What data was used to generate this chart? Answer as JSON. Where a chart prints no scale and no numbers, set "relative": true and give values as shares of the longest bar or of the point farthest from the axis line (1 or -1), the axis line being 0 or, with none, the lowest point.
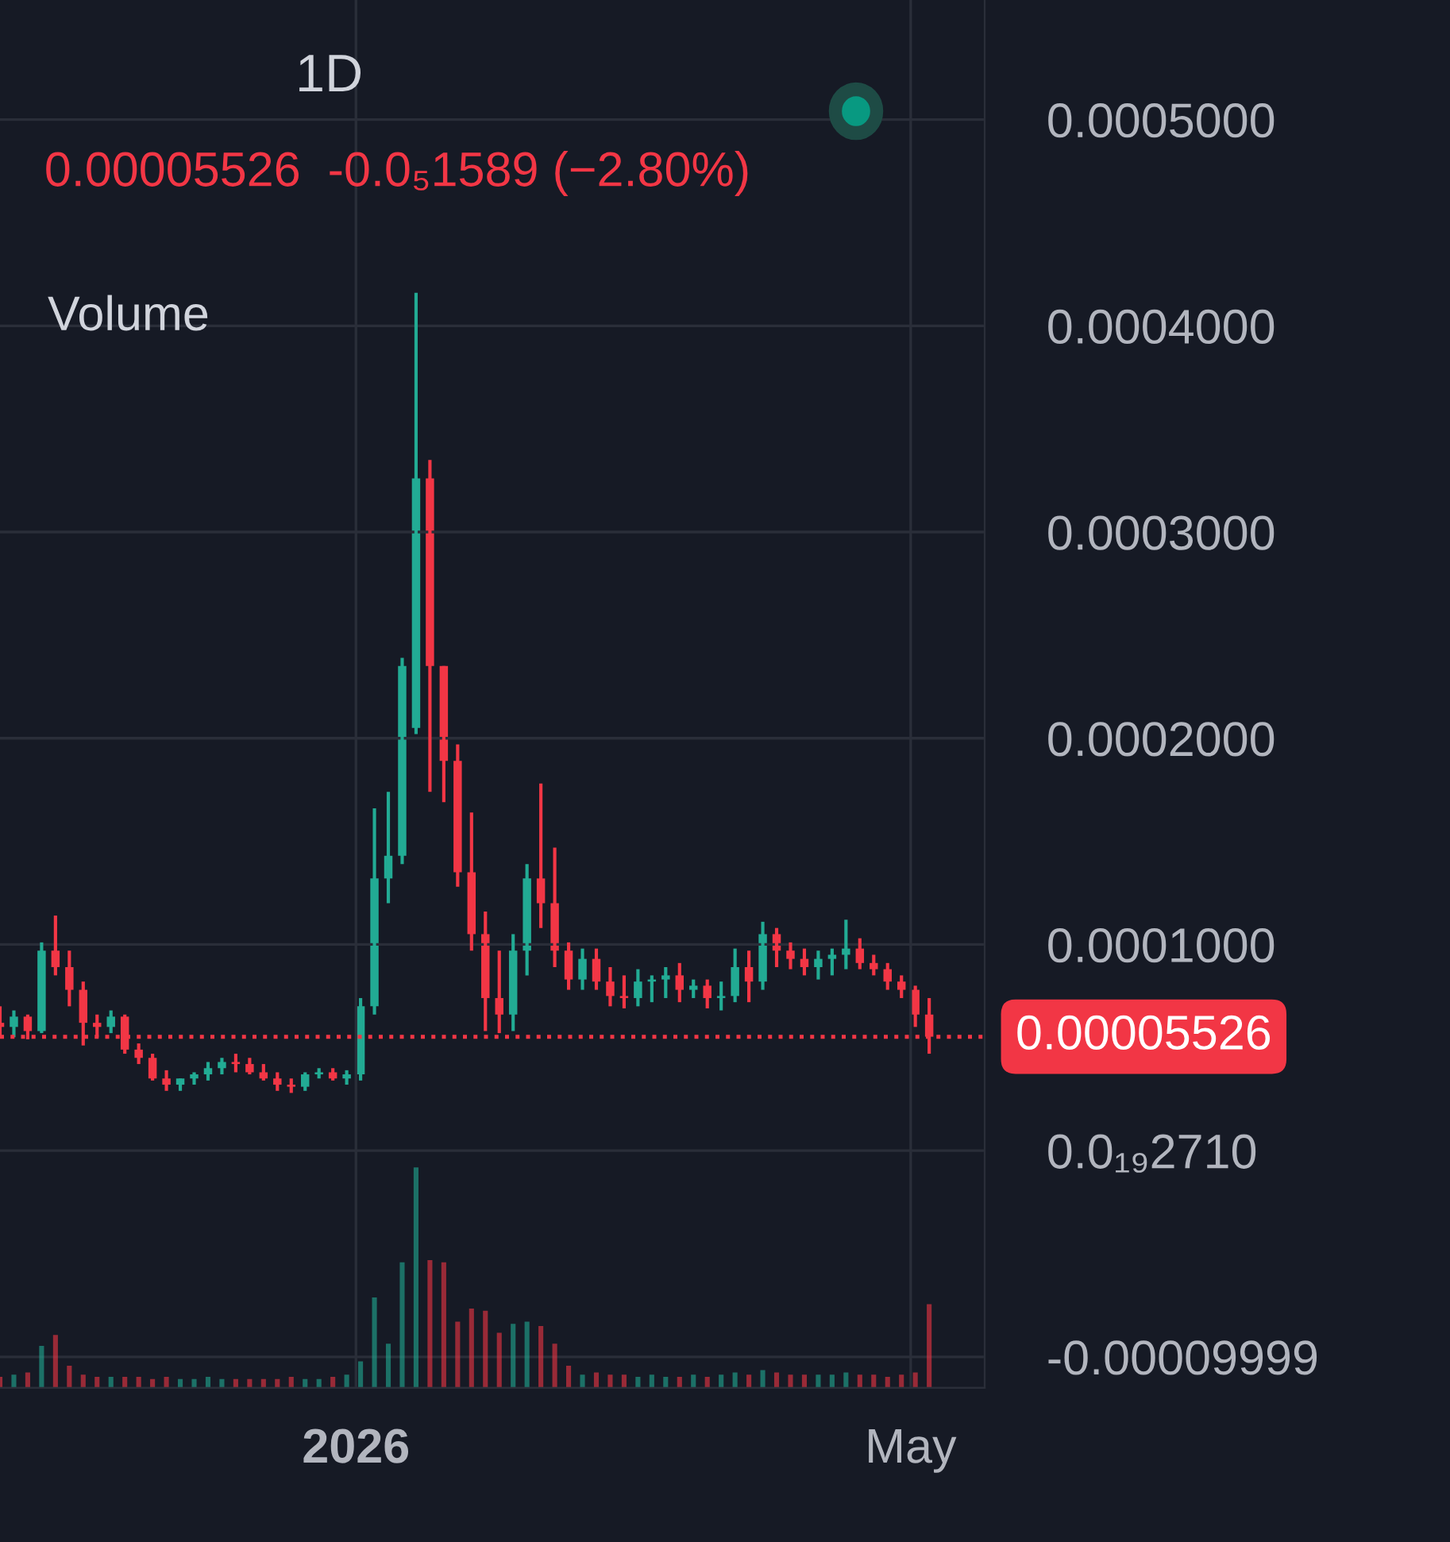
{
  "chart_data": [
    {
      "type": "candlestick",
      "title": "1D",
      "subtitle": "0.00005526  -0.0₅1589 (−2.80%)",
      "x": [
        "2025-10-16",
        "2025-10-19",
        "2025-10-22",
        "2025-10-25",
        "2025-10-28",
        "2025-10-31",
        "2025-11-03",
        "2025-11-06",
        "2025-11-09",
        "2025-11-12",
        "2025-11-15",
        "2025-11-18",
        "2025-11-21",
        "2025-11-24",
        "2025-11-27",
        "2025-11-30",
        "2025-12-03",
        "2025-12-06",
        "2025-12-09",
        "2025-12-12",
        "2025-12-15",
        "2025-12-18",
        "2025-12-21",
        "2025-12-24",
        "2025-12-27",
        "2025-12-30",
        "2026-01-02",
        "2026-01-05",
        "2026-01-08",
        "2026-01-11",
        "2026-01-14",
        "2026-01-17",
        "2026-01-20",
        "2026-01-23",
        "2026-01-26",
        "2026-01-29",
        "2026-02-01",
        "2026-02-04",
        "2026-02-07",
        "2026-02-10",
        "2026-02-13",
        "2026-02-16",
        "2026-02-19",
        "2026-02-22",
        "2026-02-25",
        "2026-02-28",
        "2026-03-03",
        "2026-03-06",
        "2026-03-09",
        "2026-03-12",
        "2026-03-15",
        "2026-03-18",
        "2026-03-21",
        "2026-03-24",
        "2026-03-27",
        "2026-03-30",
        "2026-04-02",
        "2026-04-05",
        "2026-04-08",
        "2026-04-11",
        "2026-04-14",
        "2026-04-17",
        "2026-04-20",
        "2026-04-23",
        "2026-04-26",
        "2026-04-29",
        "2026-05-02",
        "2026-05-05"
      ],
      "ohlc": [
        [
          6.2e-05,
          7e-05,
          5.5e-05,
          6e-05
        ],
        [
          6e-05,
          6.8e-05,
          5.5e-05,
          6.5e-05
        ],
        [
          6.5e-05,
          6.6e-05,
          5.4e-05,
          5.8e-05
        ],
        [
          5.8e-05,
          0.000101,
          5.7e-05,
          9.7e-05
        ],
        [
          9.7e-05,
          0.000114,
          8.5e-05,
          8.9e-05
        ],
        [
          8.9e-05,
          9.7e-05,
          7e-05,
          7.8e-05
        ],
        [
          7.8e-05,
          8.2e-05,
          5.1e-05,
          6.2e-05
        ],
        [
          6.2e-05,
          6.6e-05,
          5.5e-05,
          6e-05
        ],
        [
          6e-05,
          6.8e-05,
          5.7e-05,
          6.5e-05
        ],
        [
          6.5e-05,
          6.6e-05,
          4.7e-05,
          4.9e-05
        ],
        [
          4.9e-05,
          5.2e-05,
          4.2e-05,
          4.5e-05
        ],
        [
          4.5e-05,
          4.7e-05,
          3.4e-05,
          3.5e-05
        ],
        [
          3.5e-05,
          3.9e-05,
          2.9e-05,
          3.2e-05
        ],
        [
          3.2e-05,
          3.5e-05,
          2.9e-05,
          3.5e-05
        ],
        [
          3.5e-05,
          3.8e-05,
          3.2e-05,
          3.7e-05
        ],
        [
          3.7e-05,
          4.3e-05,
          3.4e-05,
          4e-05
        ],
        [
          4e-05,
          4.5e-05,
          3.7e-05,
          4.3e-05
        ],
        [
          4.3e-05,
          4.7e-05,
          3.8e-05,
          4.2e-05
        ],
        [
          4.2e-05,
          4.5e-05,
          3.7e-05,
          3.8e-05
        ],
        [
          3.8e-05,
          4.2e-05,
          3.4e-05,
          3.5e-05
        ],
        [
          3.5e-05,
          3.8e-05,
          2.9e-05,
          3.2e-05
        ],
        [
          3.2e-05,
          3.5e-05,
          2.8e-05,
          3.1e-05
        ],
        [
          3.1e-05,
          3.8e-05,
          2.9e-05,
          3.7e-05
        ],
        [
          3.7e-05,
          4e-05,
          3.5e-05,
          3.8e-05
        ],
        [
          3.8e-05,
          4e-05,
          3.4e-05,
          3.5e-05
        ],
        [
          3.5e-05,
          3.9e-05,
          3.2e-05,
          3.7e-05
        ],
        [
          3.7e-05,
          7.4e-05,
          3.4e-05,
          7e-05
        ],
        [
          7e-05,
          0.000166,
          6.6e-05,
          0.000132
        ],
        [
          0.000132,
          0.000174,
          0.00012,
          0.000143
        ],
        [
          0.000143,
          0.000239,
          0.000139,
          0.000235
        ],
        [
          0.000205,
          0.000416,
          0.000202,
          0.000326
        ],
        [
          0.000326,
          0.000335,
          0.000174,
          0.000235
        ],
        [
          0.000235,
          0.000235,
          0.000169,
          0.000189
        ],
        [
          0.000189,
          0.000197,
          0.000128,
          0.000135
        ],
        [
          0.000135,
          0.000164,
          9.7e-05,
          0.000105
        ],
        [
          0.000105,
          0.000116,
          5.8e-05,
          7.4e-05
        ],
        [
          7.4e-05,
          9.7e-05,
          5.7e-05,
          6.6e-05
        ],
        [
          6.6e-05,
          0.000105,
          5.8e-05,
          9.7e-05
        ],
        [
          9.7e-05,
          0.000139,
          8.5e-05,
          0.000132
        ],
        [
          0.000132,
          0.000178,
          0.000108,
          0.00012
        ],
        [
          0.00012,
          0.000147,
          8.9e-05,
          9.7e-05
        ],
        [
          9.7e-05,
          0.000101,
          7.8e-05,
          8.3e-05
        ],
        [
          8.3e-05,
          9.8e-05,
          7.8e-05,
          9.3e-05
        ],
        [
          9.3e-05,
          9.8e-05,
          7.8e-05,
          8.2e-05
        ],
        [
          8.2e-05,
          8.9e-05,
          7e-05,
          7.5e-05
        ],
        [
          7.5e-05,
          8.5e-05,
          6.9e-05,
          7.4e-05
        ],
        [
          7.4e-05,
          8.8e-05,
          7e-05,
          8.2e-05
        ],
        [
          8.2e-05,
          8.5e-05,
          7.2e-05,
          8.3e-05
        ],
        [
          8.3e-05,
          8.9e-05,
          7.4e-05,
          8.5e-05
        ],
        [
          8.5e-05,
          9.1e-05,
          7.2e-05,
          7.8e-05
        ],
        [
          7.8e-05,
          8.3e-05,
          7.4e-05,
          8e-05
        ],
        [
          8e-05,
          8.3e-05,
          6.9e-05,
          7.4e-05
        ],
        [
          7.4e-05,
          8.2e-05,
          6.8e-05,
          7.5e-05
        ],
        [
          7.5e-05,
          9.8e-05,
          7.2e-05,
          8.9e-05
        ],
        [
          8.9e-05,
          9.7e-05,
          7.2e-05,
          8.2e-05
        ],
        [
          8.2e-05,
          0.000111,
          7.8e-05,
          0.000105
        ],
        [
          0.000105,
          0.000108,
          8.9e-05,
          9.7e-05
        ],
        [
          9.7e-05,
          0.000101,
          8.8e-05,
          9.3e-05
        ],
        [
          9.3e-05,
          9.8e-05,
          8.5e-05,
          8.9e-05
        ],
        [
          8.9e-05,
          9.7e-05,
          8.3e-05,
          9.3e-05
        ],
        [
          9.3e-05,
          9.8e-05,
          8.5e-05,
          9.5e-05
        ],
        [
          9.5e-05,
          0.000112,
          8.8e-05,
          9.8e-05
        ],
        [
          9.8e-05,
          0.000103,
          8.8e-05,
          9.1e-05
        ],
        [
          9.1e-05,
          9.5e-05,
          8.5e-05,
          8.8e-05
        ],
        [
          8.8e-05,
          9.1e-05,
          7.8e-05,
          8.2e-05
        ],
        [
          8.2e-05,
          8.5e-05,
          7.4e-05,
          7.8e-05
        ],
        [
          7.8e-05,
          8e-05,
          6e-05,
          6.6e-05
        ],
        [
          6.6e-05,
          7.4e-05,
          4.7e-05,
          5.526e-05
        ]
      ],
      "colors": [
        "#f23645",
        "#22ab94",
        "#f23645",
        "#22ab94",
        "#f23645",
        "#f23645",
        "#f23645",
        "#f23645",
        "#22ab94",
        "#f23645",
        "#f23645",
        "#f23645",
        "#f23645",
        "#22ab94",
        "#22ab94",
        "#22ab94",
        "#22ab94",
        "#f23645",
        "#f23645",
        "#f23645",
        "#f23645",
        "#f23645",
        "#22ab94",
        "#22ab94",
        "#f23645",
        "#22ab94",
        "#22ab94",
        "#22ab94",
        "#22ab94",
        "#22ab94",
        "#22ab94",
        "#f23645",
        "#f23645",
        "#f23645",
        "#f23645",
        "#f23645",
        "#f23645",
        "#22ab94",
        "#22ab94",
        "#f23645",
        "#f23645",
        "#f23645",
        "#22ab94",
        "#f23645",
        "#f23645",
        "#f23645",
        "#22ab94",
        "#22ab94",
        "#22ab94",
        "#f23645",
        "#22ab94",
        "#f23645",
        "#22ab94",
        "#22ab94",
        "#f23645",
        "#22ab94",
        "#f23645",
        "#f23645",
        "#f23645",
        "#22ab94",
        "#22ab94",
        "#22ab94",
        "#f23645",
        "#f23645",
        "#f23645",
        "#f23645",
        "#f23645",
        "#f23645"
      ],
      "xlim": [
        "2025-10-16",
        "2026-05-17"
      ],
      "xticks": [
        {
          "value": "2026-01-01",
          "label": "2026"
        },
        {
          "value": "2026-05-01",
          "label": "May"
        }
      ],
      "ylim": [
        -0.000115,
        0.000558
      ],
      "yticks": [
        {
          "value": 0.0005,
          "label": "0.0005000"
        },
        {
          "value": 0.0004,
          "label": "0.0004000"
        },
        {
          "value": 0.0003,
          "label": "0.0003000"
        },
        {
          "value": 0.0002,
          "label": "0.0002000"
        },
        {
          "value": 0.0001,
          "label": "0.0001000"
        },
        {
          "value": 2.71e-20,
          "label": "0.0₁₉2710"
        },
        {
          "value": -9.999e-05,
          "label": "-0.00009999"
        }
      ],
      "ref_lines": [
        {
          "axis": "y",
          "value": 5.526e-05,
          "label": "0.00005526",
          "color": "#f23645",
          "line_style": "dotted"
        }
      ],
      "grid": true,
      "legend": false
    },
    {
      "type": "bar",
      "title": "Volume",
      "relative": true,
      "x": [
        "2025-10-16",
        "2025-10-19",
        "2025-10-22",
        "2025-10-25",
        "2025-10-28",
        "2025-10-31",
        "2025-11-03",
        "2025-11-06",
        "2025-11-09",
        "2025-11-12",
        "2025-11-15",
        "2025-11-18",
        "2025-11-21",
        "2025-11-24",
        "2025-11-27",
        "2025-11-30",
        "2025-12-03",
        "2025-12-06",
        "2025-12-09",
        "2025-12-12",
        "2025-12-15",
        "2025-12-18",
        "2025-12-21",
        "2025-12-24",
        "2025-12-27",
        "2025-12-30",
        "2026-01-02",
        "2026-01-05",
        "2026-01-08",
        "2026-01-11",
        "2026-01-14",
        "2026-01-17",
        "2026-01-20",
        "2026-01-23",
        "2026-01-26",
        "2026-01-29",
        "2026-02-01",
        "2026-02-04",
        "2026-02-07",
        "2026-02-10",
        "2026-02-13",
        "2026-02-16",
        "2026-02-19",
        "2026-02-22",
        "2026-02-25",
        "2026-02-28",
        "2026-03-03",
        "2026-03-06",
        "2026-03-09",
        "2026-03-12",
        "2026-03-15",
        "2026-03-18",
        "2026-03-21",
        "2026-03-24",
        "2026-03-27",
        "2026-03-30",
        "2026-04-02",
        "2026-04-05",
        "2026-04-08",
        "2026-04-11",
        "2026-04-14",
        "2026-04-17",
        "2026-04-20",
        "2026-04-23",
        "2026-04-26",
        "2026-04-29",
        "2026-05-02",
        "2026-05-05"
      ],
      "xlim": [
        "2025-10-16",
        "2026-05-17"
      ],
      "values": [
        0.05,
        0.06,
        0.07,
        0.19,
        0.24,
        0.1,
        0.06,
        0.05,
        0.05,
        0.05,
        0.05,
        0.04,
        0.05,
        0.04,
        0.04,
        0.05,
        0.04,
        0.04,
        0.04,
        0.04,
        0.04,
        0.05,
        0.04,
        0.04,
        0.05,
        0.06,
        0.12,
        0.41,
        0.2,
        0.57,
        1.0,
        0.58,
        0.57,
        0.3,
        0.36,
        0.35,
        0.25,
        0.29,
        0.3,
        0.28,
        0.2,
        0.1,
        0.06,
        0.07,
        0.06,
        0.06,
        0.05,
        0.06,
        0.05,
        0.05,
        0.06,
        0.05,
        0.06,
        0.07,
        0.06,
        0.08,
        0.07,
        0.06,
        0.06,
        0.06,
        0.06,
        0.07,
        0.06,
        0.06,
        0.05,
        0.06,
        0.07,
        0.38
      ],
      "colors": [
        "#f23645",
        "#22ab94",
        "#f23645",
        "#22ab94",
        "#f23645",
        "#f23645",
        "#f23645",
        "#f23645",
        "#22ab94",
        "#f23645",
        "#f23645",
        "#f23645",
        "#f23645",
        "#22ab94",
        "#22ab94",
        "#22ab94",
        "#22ab94",
        "#f23645",
        "#f23645",
        "#f23645",
        "#f23645",
        "#f23645",
        "#22ab94",
        "#22ab94",
        "#f23645",
        "#22ab94",
        "#22ab94",
        "#22ab94",
        "#22ab94",
        "#22ab94",
        "#22ab94",
        "#f23645",
        "#f23645",
        "#f23645",
        "#f23645",
        "#f23645",
        "#f23645",
        "#22ab94",
        "#22ab94",
        "#f23645",
        "#f23645",
        "#f23645",
        "#22ab94",
        "#f23645",
        "#f23645",
        "#f23645",
        "#22ab94",
        "#22ab94",
        "#22ab94",
        "#f23645",
        "#22ab94",
        "#f23645",
        "#22ab94",
        "#22ab94",
        "#f23645",
        "#22ab94",
        "#f23645",
        "#f23645",
        "#f23645",
        "#22ab94",
        "#22ab94",
        "#22ab94",
        "#f23645",
        "#f23645",
        "#f23645",
        "#f23645",
        "#f23645",
        "#f23645"
      ],
      "grid": false,
      "legend": false
    }
  ]
}
